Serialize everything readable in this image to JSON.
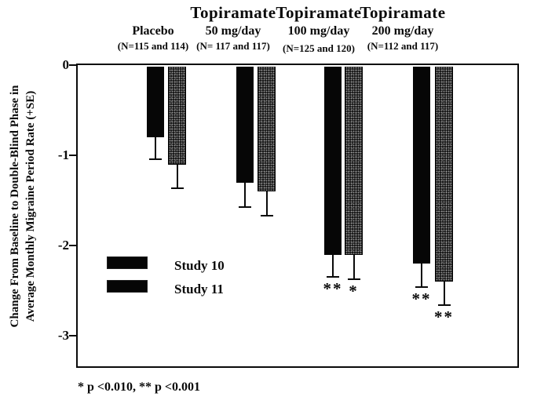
{
  "chart_data": {
    "type": "bar",
    "ylabel_lines": [
      "Change From Baseline to Double-Blind Phase in",
      "Average Monthly Migraine Period Rate (+SE)"
    ],
    "y_ticks": [
      0,
      -1,
      -2,
      -3
    ],
    "ylim": [
      -3.4,
      0
    ],
    "grid": false,
    "legend_position": "inside-left",
    "legend": [
      {
        "name": "Study 10",
        "style": "solid-black"
      },
      {
        "name": "Study 11",
        "style": "stippled-black"
      }
    ],
    "footnote": "* p <0.010, ** p <0.001",
    "categories": [
      "Placebo",
      "Topiramate 50 mg/day",
      "Topiramate 100 mg/day",
      "Topiramate 200 mg/day"
    ],
    "groups": [
      {
        "header": "",
        "dose": "Placebo",
        "n_label": "(N=115 and 114)",
        "study10": {
          "value": -0.8,
          "se": 0.25,
          "sig": ""
        },
        "study11": {
          "value": -1.1,
          "se": 0.27,
          "sig": ""
        }
      },
      {
        "header": "Topiramate",
        "dose": "50 mg/day",
        "n_label": "(N= 117 and 117)",
        "study10": {
          "value": -1.3,
          "se": 0.28,
          "sig": ""
        },
        "study11": {
          "value": -1.4,
          "se": 0.28,
          "sig": ""
        }
      },
      {
        "header": "Topiramate",
        "dose": "100 mg/day",
        "n_label": "(N=125 and 120)",
        "study10": {
          "value": -2.1,
          "se": 0.26,
          "sig": "**"
        },
        "study11": {
          "value": -2.1,
          "se": 0.28,
          "sig": "*"
        }
      },
      {
        "header": "Topiramate",
        "dose": "200 mg/day",
        "n_label": "(N=112 and 117)",
        "study10": {
          "value": -2.2,
          "se": 0.27,
          "sig": "**"
        },
        "study11": {
          "value": -2.4,
          "se": 0.27,
          "sig": "**"
        }
      }
    ]
  }
}
